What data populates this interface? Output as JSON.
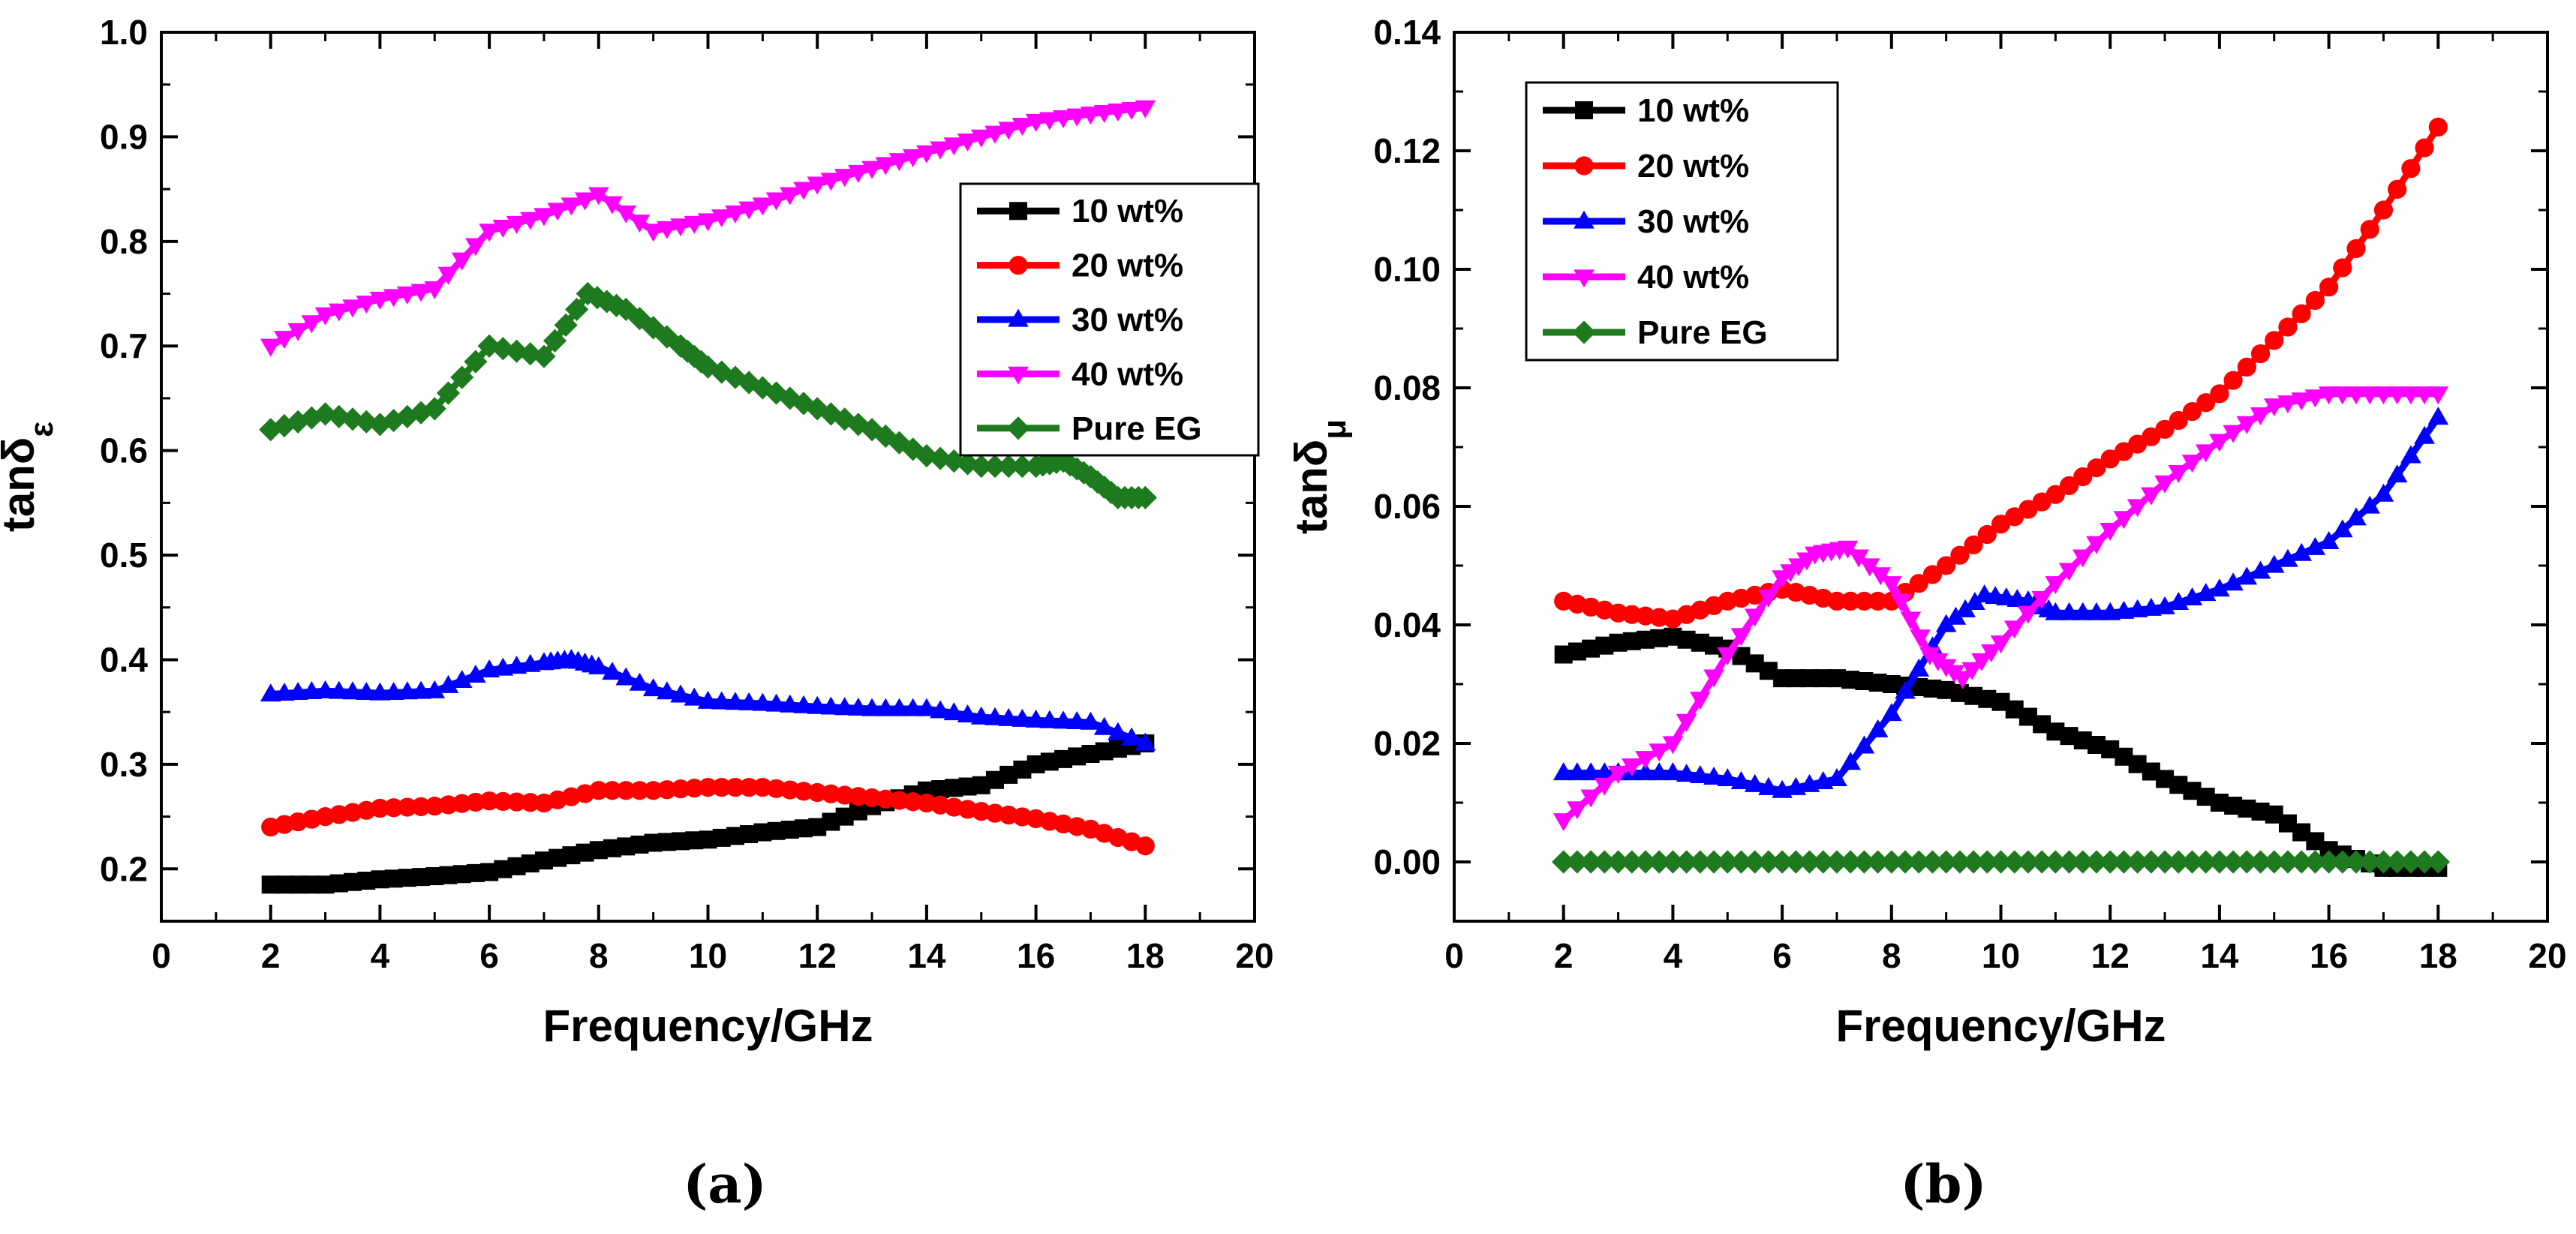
{
  "chart_data": [
    {
      "type": "line",
      "caption": "(a)",
      "xlabel": "Frequency/GHz",
      "ylabel_main": "tanδ",
      "ylabel_sub": "ε",
      "xlim": [
        0,
        20
      ],
      "ylim": [
        0.15,
        1.0
      ],
      "xticks": [
        0,
        2,
        4,
        6,
        8,
        10,
        12,
        14,
        16,
        18,
        20
      ],
      "yticks": [
        0.2,
        0.3,
        0.4,
        0.5,
        0.6,
        0.7,
        0.8,
        0.9,
        1.0
      ],
      "ytick_labels": [
        "0.2",
        "0.3",
        "0.4",
        "0.5",
        "0.6",
        "0.7",
        "0.8",
        "0.9",
        "1.0"
      ],
      "legend_position": "right-middle",
      "series": [
        {
          "name": "10 wt%",
          "color": "#000000",
          "marker": "square",
          "x": [
            2,
            3,
            4,
            5,
            6,
            7,
            8,
            9,
            10,
            11,
            12,
            13,
            14,
            15,
            16,
            17,
            18
          ],
          "y": [
            0.185,
            0.185,
            0.19,
            0.193,
            0.197,
            0.208,
            0.218,
            0.225,
            0.228,
            0.235,
            0.24,
            0.26,
            0.275,
            0.28,
            0.3,
            0.31,
            0.32
          ]
        },
        {
          "name": "20 wt%",
          "color": "#ff0000",
          "marker": "circle",
          "x": [
            2,
            3,
            4,
            5,
            6,
            7,
            8,
            9,
            10,
            11,
            12,
            13,
            14,
            15,
            16,
            17,
            18
          ],
          "y": [
            0.24,
            0.25,
            0.258,
            0.26,
            0.265,
            0.263,
            0.275,
            0.275,
            0.278,
            0.278,
            0.273,
            0.268,
            0.263,
            0.255,
            0.248,
            0.238,
            0.222
          ]
        },
        {
          "name": "30 wt%",
          "color": "#0000ff",
          "marker": "triangle-up",
          "x": [
            2,
            3,
            4,
            5,
            6,
            7,
            7.5,
            8,
            9,
            10,
            11,
            12,
            13,
            14,
            15,
            16,
            17,
            18
          ],
          "y": [
            0.367,
            0.37,
            0.368,
            0.37,
            0.39,
            0.397,
            0.4,
            0.393,
            0.372,
            0.36,
            0.358,
            0.355,
            0.353,
            0.353,
            0.345,
            0.342,
            0.34,
            0.32
          ]
        },
        {
          "name": "40 wt%",
          "color": "#ff00ff",
          "marker": "triangle-down",
          "x": [
            2,
            3,
            4,
            5,
            6,
            7,
            8,
            9,
            10,
            11,
            12,
            13,
            14,
            15,
            16,
            17,
            18
          ],
          "y": [
            0.7,
            0.73,
            0.745,
            0.755,
            0.81,
            0.825,
            0.845,
            0.81,
            0.82,
            0.835,
            0.855,
            0.87,
            0.885,
            0.9,
            0.915,
            0.922,
            0.928
          ]
        },
        {
          "name": "Pure EG",
          "color": "#1e7a1e",
          "marker": "diamond",
          "x": [
            2,
            3,
            4,
            5,
            6,
            7,
            7.8,
            8.5,
            9.5,
            10,
            11,
            12,
            13,
            14,
            15,
            16,
            16.5,
            17,
            17.5,
            18
          ],
          "y": [
            0.62,
            0.635,
            0.625,
            0.64,
            0.7,
            0.69,
            0.75,
            0.735,
            0.7,
            0.68,
            0.66,
            0.64,
            0.62,
            0.595,
            0.585,
            0.585,
            0.59,
            0.575,
            0.555,
            0.555
          ]
        }
      ]
    },
    {
      "type": "line",
      "caption": "(b)",
      "xlabel": "Frequency/GHz",
      "ylabel_main": "tanδ",
      "ylabel_sub": "μ",
      "xlim": [
        0,
        20
      ],
      "ylim": [
        -0.01,
        0.14
      ],
      "xticks": [
        0,
        2,
        4,
        6,
        8,
        10,
        12,
        14,
        16,
        18,
        20
      ],
      "yticks": [
        0.0,
        0.02,
        0.04,
        0.06,
        0.08,
        0.1,
        0.12,
        0.14
      ],
      "ytick_labels": [
        "0.00",
        "0.02",
        "0.04",
        "0.06",
        "0.08",
        "0.10",
        "0.12",
        "0.14"
      ],
      "legend_position": "top-left",
      "series": [
        {
          "name": "10 wt%",
          "color": "#000000",
          "marker": "square",
          "x": [
            2,
            3,
            4,
            5,
            6,
            7,
            8,
            9,
            10,
            11,
            12,
            13,
            14,
            15,
            16,
            17,
            18
          ],
          "y": [
            0.035,
            0.037,
            0.038,
            0.036,
            0.031,
            0.031,
            0.03,
            0.029,
            0.027,
            0.022,
            0.019,
            0.014,
            0.01,
            0.008,
            0.002,
            -0.001,
            -0.001
          ]
        },
        {
          "name": "20 wt%",
          "color": "#ff0000",
          "marker": "circle",
          "x": [
            2,
            3,
            4,
            5,
            6,
            7,
            8,
            9,
            10,
            11,
            12,
            13,
            14,
            15,
            16,
            17,
            18
          ],
          "y": [
            0.044,
            0.042,
            0.041,
            0.044,
            0.046,
            0.044,
            0.044,
            0.05,
            0.057,
            0.062,
            0.068,
            0.073,
            0.079,
            0.088,
            0.097,
            0.11,
            0.124
          ]
        },
        {
          "name": "30 wt%",
          "color": "#0000ff",
          "marker": "triangle-up",
          "x": [
            2,
            3,
            4,
            5,
            6,
            7,
            8,
            9,
            9.7,
            10.5,
            11,
            12,
            13,
            14,
            15,
            16,
            17,
            18
          ],
          "y": [
            0.015,
            0.015,
            0.015,
            0.014,
            0.012,
            0.014,
            0.025,
            0.04,
            0.045,
            0.044,
            0.042,
            0.042,
            0.043,
            0.046,
            0.05,
            0.054,
            0.062,
            0.075
          ]
        },
        {
          "name": "40 wt%",
          "color": "#ff00ff",
          "marker": "triangle-down",
          "x": [
            2,
            3,
            4,
            5,
            6,
            6.6,
            7.2,
            8,
            8.7,
            9.3,
            10,
            11,
            12,
            13,
            14,
            15,
            16,
            17,
            18
          ],
          "y": [
            0.007,
            0.015,
            0.02,
            0.035,
            0.048,
            0.052,
            0.053,
            0.047,
            0.035,
            0.031,
            0.037,
            0.047,
            0.056,
            0.064,
            0.071,
            0.077,
            0.079,
            0.079,
            0.079
          ]
        },
        {
          "name": "Pure EG",
          "color": "#1e7a1e",
          "marker": "diamond",
          "x": [
            2,
            3,
            4,
            5,
            6,
            7,
            8,
            9,
            10,
            11,
            12,
            13,
            14,
            15,
            16,
            17,
            18
          ],
          "y": [
            0,
            0,
            0,
            0,
            0,
            0,
            0,
            0,
            0,
            0,
            0,
            0,
            0,
            0,
            0,
            0,
            0
          ]
        }
      ]
    }
  ]
}
